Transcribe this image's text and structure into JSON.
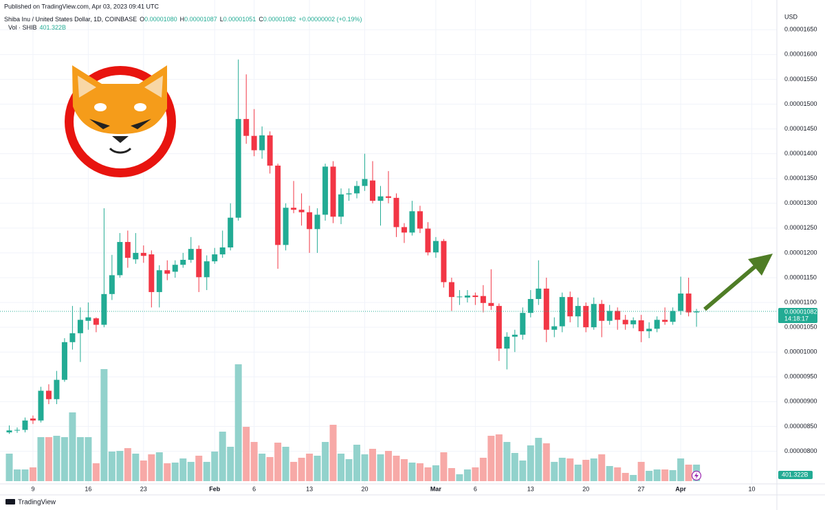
{
  "header": {
    "published": "Published on TradingView.com, Apr 03, 2023 09:41 UTC",
    "symbol": "Shiba Inu / United States Dollar, 1D, COINBASE",
    "ohlc": [
      {
        "key": "O",
        "value": "0.00001080"
      },
      {
        "key": "H",
        "value": "0.00001087"
      },
      {
        "key": "L",
        "value": "0.00001051"
      },
      {
        "key": "C",
        "value": "0.00001082"
      }
    ],
    "change": "+0.00000002 (+0.19%)",
    "volume_name": "Vol · SHIB",
    "currency": "USD",
    "brand": "TradingView"
  },
  "chart_data": {
    "type": "candlestick",
    "x": [
      "2023-01-06",
      "2023-01-07",
      "2023-01-08",
      "2023-01-09",
      "2023-01-10",
      "2023-01-11",
      "2023-01-12",
      "2023-01-13",
      "2023-01-14",
      "2023-01-15",
      "2023-01-16",
      "2023-01-17",
      "2023-01-18",
      "2023-01-19",
      "2023-01-20",
      "2023-01-21",
      "2023-01-22",
      "2023-01-23",
      "2023-01-24",
      "2023-01-25",
      "2023-01-26",
      "2023-01-27",
      "2023-01-28",
      "2023-01-29",
      "2023-01-30",
      "2023-01-31",
      "2023-02-01",
      "2023-02-02",
      "2023-02-03",
      "2023-02-04",
      "2023-02-05",
      "2023-02-06",
      "2023-02-07",
      "2023-02-08",
      "2023-02-09",
      "2023-02-10",
      "2023-02-11",
      "2023-02-12",
      "2023-02-13",
      "2023-02-14",
      "2023-02-15",
      "2023-02-16",
      "2023-02-17",
      "2023-02-18",
      "2023-02-19",
      "2023-02-20",
      "2023-02-21",
      "2023-02-22",
      "2023-02-23",
      "2023-02-24",
      "2023-02-25",
      "2023-02-26",
      "2023-02-27",
      "2023-02-28",
      "2023-03-01",
      "2023-03-02",
      "2023-03-03",
      "2023-03-04",
      "2023-03-05",
      "2023-03-06",
      "2023-03-07",
      "2023-03-08",
      "2023-03-09",
      "2023-03-10",
      "2023-03-11",
      "2023-03-12",
      "2023-03-13",
      "2023-03-14",
      "2023-03-15",
      "2023-03-16",
      "2023-03-17",
      "2023-03-18",
      "2023-03-19",
      "2023-03-20",
      "2023-03-21",
      "2023-03-22",
      "2023-03-23",
      "2023-03-24",
      "2023-03-25",
      "2023-03-26",
      "2023-03-27",
      "2023-03-28",
      "2023-03-29",
      "2023-03-30",
      "2023-03-31",
      "2023-04-01",
      "2023-04-02",
      "2023-04-03"
    ],
    "open": [
      8.38e-06,
      8.42e-06,
      8.43e-06,
      8.66e-06,
      8.62e-06,
      9.22e-06,
      9.05e-06,
      9.44e-06,
      1.02e-05,
      1.038e-05,
      1.063e-05,
      1.068e-05,
      1.055e-05,
      1.117e-05,
      1.155e-05,
      1.222e-05,
      1.187e-05,
      1.2e-05,
      1.197e-05,
      1.121e-05,
      1.165e-05,
      1.162e-05,
      1.176e-05,
      1.186e-05,
      1.208e-05,
      1.151e-05,
      1.183e-05,
      1.197e-05,
      1.211e-05,
      1.271e-05,
      1.47e-05,
      1.436e-05,
      1.407e-05,
      1.437e-05,
      1.376e-05,
      1.216e-05,
      1.291e-05,
      1.287e-05,
      1.282e-05,
      1.248e-05,
      1.277e-05,
      1.374e-05,
      1.273e-05,
      1.318e-05,
      1.32e-05,
      1.335e-05,
      1.346e-05,
      1.305e-05,
      1.314e-05,
      1.311e-05,
      1.252e-05,
      1.241e-05,
      1.284e-05,
      1.249e-05,
      1.201e-05,
      1.224e-05,
      1.141e-05,
      1.111e-05,
      1.11e-05,
      1.114e-05,
      1.113e-05,
      1.099e-05,
      1.093e-05,
      1.007e-05,
      1.031e-05,
      1.035e-05,
      1.079e-05,
      1.107e-05,
      1.128e-05,
      1.045e-05,
      1.052e-05,
      1.111e-05,
      1.072e-05,
      1.093e-05,
      1.05e-05,
      1.097e-05,
      1.063e-05,
      1.083e-05,
      1.065e-05,
      1.056e-05,
      1.064e-05,
      1.042e-05,
      1.047e-05,
      1.065e-05,
      1.061e-05,
      1.083e-05,
      1.118e-05,
      1.08e-05
    ],
    "high": [
      8.52e-06,
      8.48e-06,
      8.68e-06,
      8.72e-06,
      9.3e-06,
      9.35e-06,
      9.62e-06,
      1.028e-05,
      1.093e-05,
      1.09e-05,
      1.1e-05,
      1.07e-05,
      1.29e-05,
      1.196e-05,
      1.24e-05,
      1.245e-05,
      1.24e-05,
      1.215e-05,
      1.205e-05,
      1.175e-05,
      1.185e-05,
      1.185e-05,
      1.2e-05,
      1.232e-05,
      1.215e-05,
      1.195e-05,
      1.21e-05,
      1.245e-05,
      1.3e-05,
      1.59e-05,
      1.56e-05,
      1.49e-05,
      1.455e-05,
      1.445e-05,
      1.38e-05,
      1.3e-05,
      1.345e-05,
      1.32e-05,
      1.295e-05,
      1.29e-05,
      1.38e-05,
      1.385e-05,
      1.33e-05,
      1.33e-05,
      1.345e-05,
      1.4e-05,
      1.385e-05,
      1.335e-05,
      1.365e-05,
      1.32e-05,
      1.26e-05,
      1.305e-05,
      1.295e-05,
      1.262e-05,
      1.232e-05,
      1.228e-05,
      1.15e-05,
      1.125e-05,
      1.125e-05,
      1.12e-05,
      1.135e-05,
      1.167e-05,
      1.098e-05,
      1.04e-05,
      1.045e-05,
      1.09e-05,
      1.125e-05,
      1.185e-05,
      1.15e-05,
      1.07e-05,
      1.12e-05,
      1.122e-05,
      1.11e-05,
      1.1e-05,
      1.11e-05,
      1.105e-05,
      1.095e-05,
      1.09e-05,
      1.075e-05,
      1.07e-05,
      1.075e-05,
      1.06e-05,
      1.072e-05,
      1.09e-05,
      1.09e-05,
      1.152e-05,
      1.15e-05,
      1.087e-05
    ],
    "low": [
      8.35e-06,
      8.37e-06,
      8.38e-06,
      8.55e-06,
      8.58e-06,
      8.95e-06,
      8.95e-06,
      9.4e-06,
      1.005e-05,
      9.8e-06,
      1.045e-05,
      1.04e-05,
      1.05e-05,
      1.105e-05,
      1.15e-05,
      1.17e-05,
      1.178e-05,
      1.18e-05,
      1.09e-05,
      1.09e-05,
      1.145e-05,
      1.15e-05,
      1.17e-05,
      1.18e-05,
      1.121e-05,
      1.125e-05,
      1.178e-05,
      1.19e-05,
      1.205e-05,
      1.265e-05,
      1.42e-05,
      1.395e-05,
      1.39e-05,
      1.36e-05,
      1.168e-05,
      1.205e-05,
      1.28e-05,
      1.255e-05,
      1.2e-05,
      1.2e-05,
      1.265e-05,
      1.26e-05,
      1.258e-05,
      1.305e-05,
      1.31e-05,
      1.325e-05,
      1.3e-05,
      1.255e-05,
      1.3e-05,
      1.232e-05,
      1.22e-05,
      1.235e-05,
      1.24e-05,
      1.195e-05,
      1.19e-05,
      1.13e-05,
      1.083e-05,
      1.095e-05,
      1.1e-05,
      1.095e-05,
      1.08e-05,
      1.085e-05,
      9.82e-06,
      9.65e-06,
      1e-05,
      1.025e-05,
      1.07e-05,
      1.095e-05,
      1.02e-05,
      1.03e-05,
      1.04e-05,
      1.06e-05,
      1.05e-05,
      1.04e-05,
      1.045e-05,
      1.03e-05,
      1.055e-05,
      1.045e-05,
      1.045e-05,
      1.048e-05,
      1.02e-05,
      1.028e-05,
      1.04e-05,
      1.055e-05,
      1.055e-05,
      1.075e-05,
      1.072e-05,
      1.051e-05
    ],
    "close": [
      8.42e-06,
      8.43e-06,
      8.62e-06,
      8.62e-06,
      9.22e-06,
      9.05e-06,
      9.44e-06,
      1.02e-05,
      1.038e-05,
      1.065e-05,
      1.07e-05,
      1.055e-05,
      1.117e-05,
      1.155e-05,
      1.222e-05,
      1.19e-05,
      1.2e-05,
      1.194e-05,
      1.121e-05,
      1.165e-05,
      1.158e-05,
      1.176e-05,
      1.186e-05,
      1.208e-05,
      1.151e-05,
      1.183e-05,
      1.197e-05,
      1.211e-05,
      1.271e-05,
      1.47e-05,
      1.436e-05,
      1.407e-05,
      1.437e-05,
      1.376e-05,
      1.216e-05,
      1.291e-05,
      1.287e-05,
      1.282e-05,
      1.248e-05,
      1.277e-05,
      1.374e-05,
      1.273e-05,
      1.318e-05,
      1.32e-05,
      1.335e-05,
      1.349e-05,
      1.305e-05,
      1.314e-05,
      1.311e-05,
      1.252e-05,
      1.241e-05,
      1.284e-05,
      1.249e-05,
      1.201e-05,
      1.224e-05,
      1.141e-05,
      1.111e-05,
      1.112e-05,
      1.114e-05,
      1.111e-05,
      1.099e-05,
      1.093e-05,
      1.007e-05,
      1.031e-05,
      1.035e-05,
      1.079e-05,
      1.107e-05,
      1.128e-05,
      1.045e-05,
      1.052e-05,
      1.111e-05,
      1.072e-05,
      1.093e-05,
      1.05e-05,
      1.097e-05,
      1.063e-05,
      1.083e-05,
      1.065e-05,
      1.056e-05,
      1.064e-05,
      1.042e-05,
      1.047e-05,
      1.065e-05,
      1.061e-05,
      1.083e-05,
      1.118e-05,
      1.08e-05,
      1.082e-05
    ],
    "up_color": "#22ab94",
    "down_color": "#f23645",
    "xlim": [
      "2023-01-05",
      "2023-04-13"
    ],
    "xticks": [
      {
        "value": "2023-01-09",
        "label": "9"
      },
      {
        "value": "2023-01-16",
        "label": "16"
      },
      {
        "value": "2023-01-23",
        "label": "23"
      },
      {
        "value": "2023-02-01",
        "label": "Feb"
      },
      {
        "value": "2023-02-06",
        "label": "6"
      },
      {
        "value": "2023-02-13",
        "label": "13"
      },
      {
        "value": "2023-02-20",
        "label": "20"
      },
      {
        "value": "2023-03-01",
        "label": "Mar"
      },
      {
        "value": "2023-03-06",
        "label": "6"
      },
      {
        "value": "2023-03-13",
        "label": "13"
      },
      {
        "value": "2023-03-20",
        "label": "20"
      },
      {
        "value": "2023-03-27",
        "label": "27"
      },
      {
        "value": "2023-04-01",
        "label": "Apr"
      },
      {
        "value": "2023-04-10",
        "label": "10"
      }
    ],
    "ylim": [
      7.3e-06,
      1.71e-05
    ],
    "yticks": [
      {
        "value": 8e-06,
        "label": "0.00000800"
      },
      {
        "value": 8.5e-06,
        "label": "0.00000850"
      },
      {
        "value": 9e-06,
        "label": "0.00000900"
      },
      {
        "value": 9.5e-06,
        "label": "0.00000950"
      },
      {
        "value": 1e-05,
        "label": "0.00001000"
      },
      {
        "value": 1.05e-05,
        "label": "0.00001050"
      },
      {
        "value": 1.1e-05,
        "label": "0.00001100"
      },
      {
        "value": 1.15e-05,
        "label": "0.00001150"
      },
      {
        "value": 1.2e-05,
        "label": "0.00001200"
      },
      {
        "value": 1.25e-05,
        "label": "0.00001250"
      },
      {
        "value": 1.3e-05,
        "label": "0.00001300"
      },
      {
        "value": 1.35e-05,
        "label": "0.00001350"
      },
      {
        "value": 1.4e-05,
        "label": "0.00001400"
      },
      {
        "value": 1.45e-05,
        "label": "0.00001450"
      },
      {
        "value": 1.5e-05,
        "label": "0.00001500"
      },
      {
        "value": 1.55e-05,
        "label": "0.00001550"
      },
      {
        "value": 1.6e-05,
        "label": "0.00001600"
      },
      {
        "value": 1.65e-05,
        "label": "0.00001650"
      }
    ],
    "grid": true,
    "price_tag": {
      "value": 1.082e-05,
      "label": "0.00001082"
    },
    "countdown": "14:18:17",
    "volume": {
      "values": [
        668,
        284,
        284,
        334,
        1069,
        1069,
        1102,
        1069,
        1670,
        1069,
        1069,
        434,
        2722,
        718,
        735,
        802,
        668,
        501,
        651,
        701,
        434,
        451,
        551,
        468,
        618,
        468,
        718,
        1202,
        835,
        2839,
        1319,
        952,
        668,
        585,
        935,
        835,
        468,
        568,
        668,
        618,
        952,
        1369,
        668,
        534,
        885,
        651,
        785,
        651,
        735,
        618,
        534,
        451,
        434,
        334,
        384,
        701,
        317,
        167,
        284,
        334,
        568,
        1102,
        1136,
        952,
        685,
        501,
        868,
        1052,
        919,
        468,
        568,
        551,
        401,
        518,
        551,
        651,
        367,
        334,
        200,
        150,
        468,
        251,
        284,
        284,
        267,
        551,
        401,
        401.322
      ],
      "current_label": "401.322B",
      "up_color": "#92d2cc",
      "down_color": "#f7a9a7"
    }
  }
}
